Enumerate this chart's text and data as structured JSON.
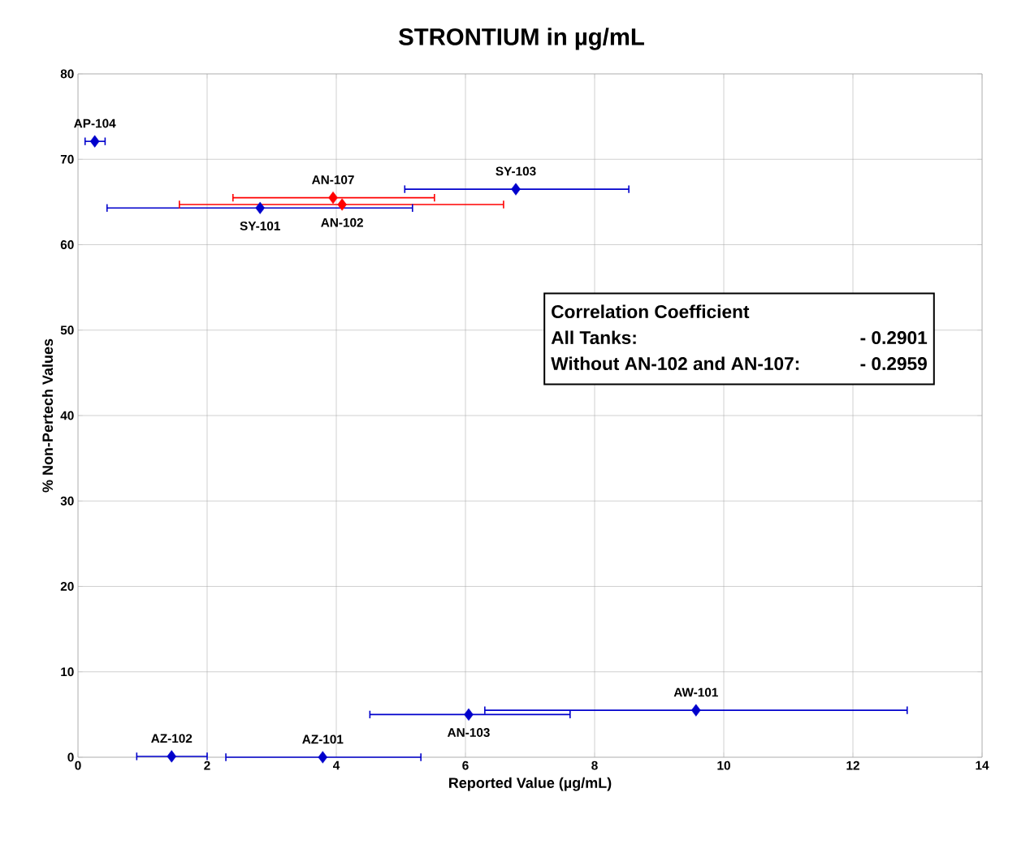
{
  "chart_data": {
    "type": "scatter",
    "title": "STRONTIUM in µg/mL",
    "xlabel": "Reported Value (µg/mL)",
    "ylabel": "% Non-Pertech Values",
    "xlim": [
      0,
      14
    ],
    "xticks": [
      0,
      2,
      4,
      6,
      8,
      10,
      12,
      14
    ],
    "ylim": [
      0,
      80
    ],
    "yticks": [
      0,
      10,
      20,
      30,
      40,
      50,
      60,
      70,
      80
    ],
    "grid": true,
    "marker": "diamond",
    "series": [
      {
        "color": "#0000cc",
        "x": [
          0.26,
          6.78,
          2.82,
          1.45,
          3.79,
          6.05,
          9.57
        ],
        "values": [
          72.1,
          66.5,
          64.3,
          0.1,
          0.0,
          5.0,
          5.5
        ],
        "xerrors": [
          [
            0.11,
            0.42
          ],
          [
            5.06,
            8.53
          ],
          [
            0.45,
            5.18
          ],
          [
            0.91,
            2.0
          ],
          [
            2.29,
            5.31
          ],
          [
            4.52,
            7.62
          ],
          [
            6.3,
            12.84
          ]
        ]
      },
      {
        "color": "#ff0000",
        "x": [
          3.95,
          4.09
        ],
        "values": [
          65.5,
          64.7
        ],
        "xerrors": [
          [
            2.4,
            5.52
          ],
          [
            1.57,
            6.59
          ]
        ]
      }
    ],
    "annotations": [
      {
        "text": "AP-104",
        "x": 0.26,
        "y": 72.1
      },
      {
        "text": "SY-103",
        "x": 6.78,
        "y": 66.5
      },
      {
        "text": "SY-101",
        "x": 2.82,
        "y": 64.3
      },
      {
        "text": "AZ-102",
        "x": 1.45,
        "y": 0.1
      },
      {
        "text": "AZ-101",
        "x": 3.79,
        "y": 0.0
      },
      {
        "text": "AN-103",
        "x": 6.05,
        "y": 5.0
      },
      {
        "text": "AW-101",
        "x": 9.57,
        "y": 5.5
      },
      {
        "text": "AN-107",
        "x": 3.95,
        "y": 65.5
      },
      {
        "text": "AN-102",
        "x": 4.09,
        "y": 64.7
      },
      "Correlation Coefficient",
      "All Tanks:",
      "- 0.2901",
      "Without AN-102 and AN-107:",
      "- 0.2959"
    ]
  }
}
